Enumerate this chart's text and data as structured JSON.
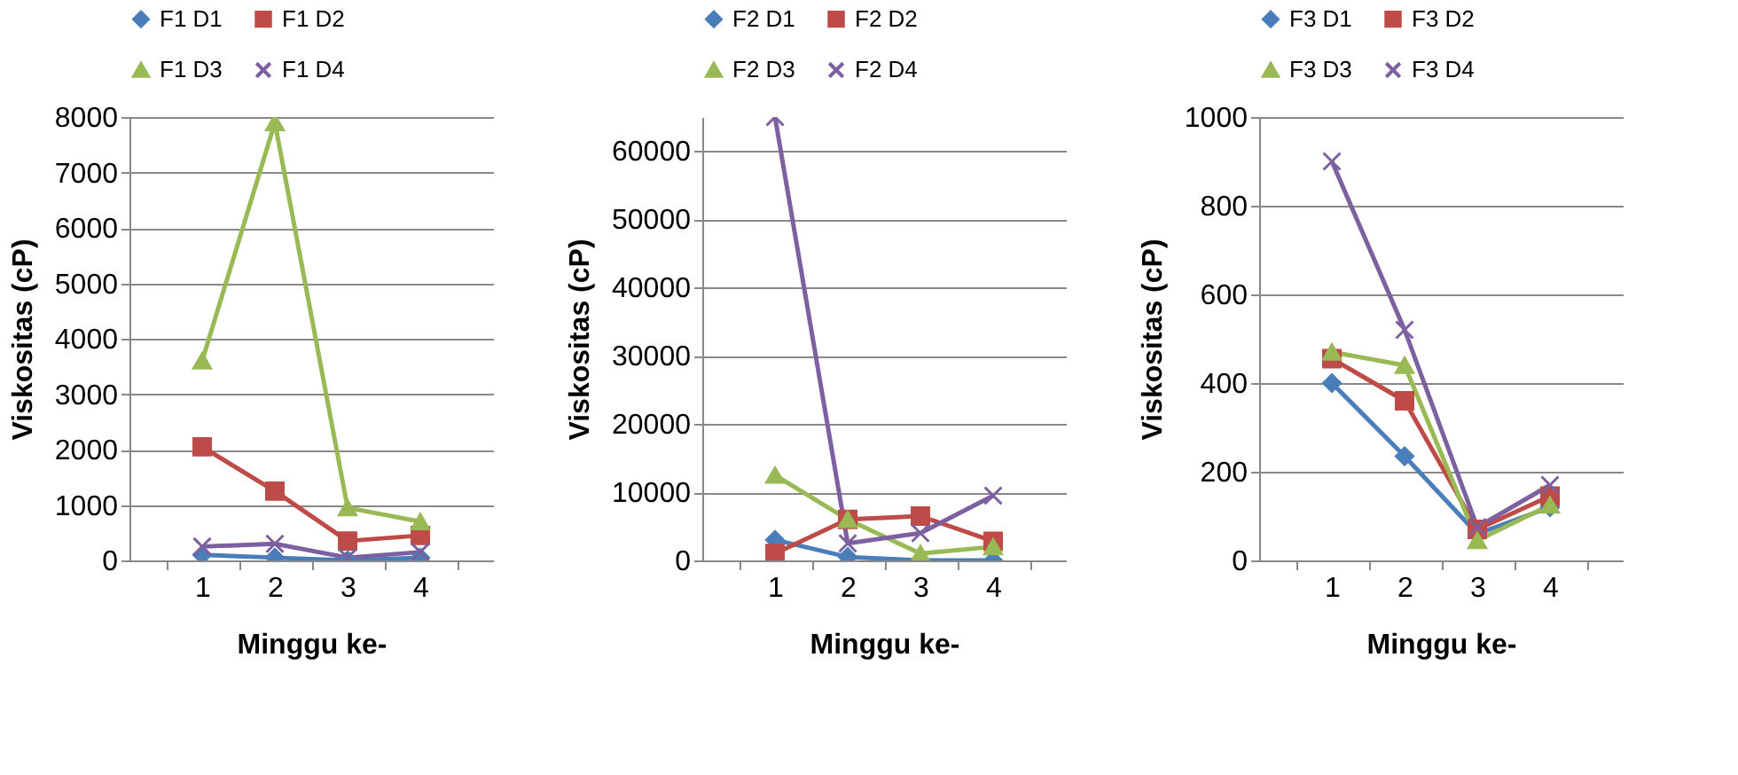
{
  "chart_data": [
    {
      "type": "line",
      "xlabel": "Minggu ke-",
      "ylabel": "Viskositas (cP)",
      "categories": [
        "1",
        "2",
        "3",
        "4"
      ],
      "ylim": [
        0,
        8000
      ],
      "yticks": [
        0,
        1000,
        2000,
        3000,
        4000,
        5000,
        6000,
        7000,
        8000
      ],
      "grid": "y",
      "legend": "top",
      "series": [
        {
          "name": "F1 D1",
          "color": "#4a7ebb",
          "marker": "diamond",
          "values": [
            100,
            50,
            0,
            50
          ]
        },
        {
          "name": "F1 D2",
          "color": "#be4b48",
          "marker": "square",
          "values": [
            2050,
            1250,
            350,
            450
          ]
        },
        {
          "name": "F1 D3",
          "color": "#98b954",
          "marker": "triangle",
          "values": [
            3600,
            7900,
            950,
            700
          ]
        },
        {
          "name": "F1 D4",
          "color": "#7d60a0",
          "marker": "cross",
          "values": [
            250,
            300,
            50,
            150
          ]
        }
      ]
    },
    {
      "type": "line",
      "xlabel": "Minggu ke-",
      "ylabel": "Viskositas (cP)",
      "categories": [
        "1",
        "2",
        "3",
        "4"
      ],
      "ylim": [
        0,
        65000
      ],
      "yticks": [
        0,
        10000,
        20000,
        30000,
        40000,
        50000,
        60000
      ],
      "grid": "y",
      "legend": "top",
      "series": [
        {
          "name": "F2 D1",
          "color": "#4a7ebb",
          "marker": "diamond",
          "values": [
            3000,
            500,
            0,
            0
          ]
        },
        {
          "name": "F2 D2",
          "color": "#be4b48",
          "marker": "square",
          "values": [
            1000,
            6000,
            6500,
            2800
          ]
        },
        {
          "name": "F2 D3",
          "color": "#98b954",
          "marker": "triangle",
          "values": [
            12500,
            6000,
            1000,
            2000
          ]
        },
        {
          "name": "F2 D4",
          "color": "#7d60a0",
          "marker": "cross",
          "values": [
            65000,
            2500,
            4000,
            9500
          ]
        }
      ]
    },
    {
      "type": "line",
      "xlabel": "Minggu ke-",
      "ylabel": "Viskositas (cP)",
      "categories": [
        "1",
        "2",
        "3",
        "4"
      ],
      "ylim": [
        0,
        1000
      ],
      "yticks": [
        0,
        200,
        400,
        600,
        800,
        1000
      ],
      "grid": "y",
      "legend": "top",
      "series": [
        {
          "name": "F3 D1",
          "color": "#4a7ebb",
          "marker": "diamond",
          "values": [
            400,
            235,
            60,
            120
          ]
        },
        {
          "name": "F3 D2",
          "color": "#be4b48",
          "marker": "square",
          "values": [
            455,
            360,
            70,
            145
          ]
        },
        {
          "name": "F3 D3",
          "color": "#98b954",
          "marker": "triangle",
          "values": [
            470,
            440,
            45,
            125
          ]
        },
        {
          "name": "F3 D4",
          "color": "#7d60a0",
          "marker": "cross",
          "values": [
            900,
            520,
            75,
            170
          ]
        }
      ]
    }
  ]
}
